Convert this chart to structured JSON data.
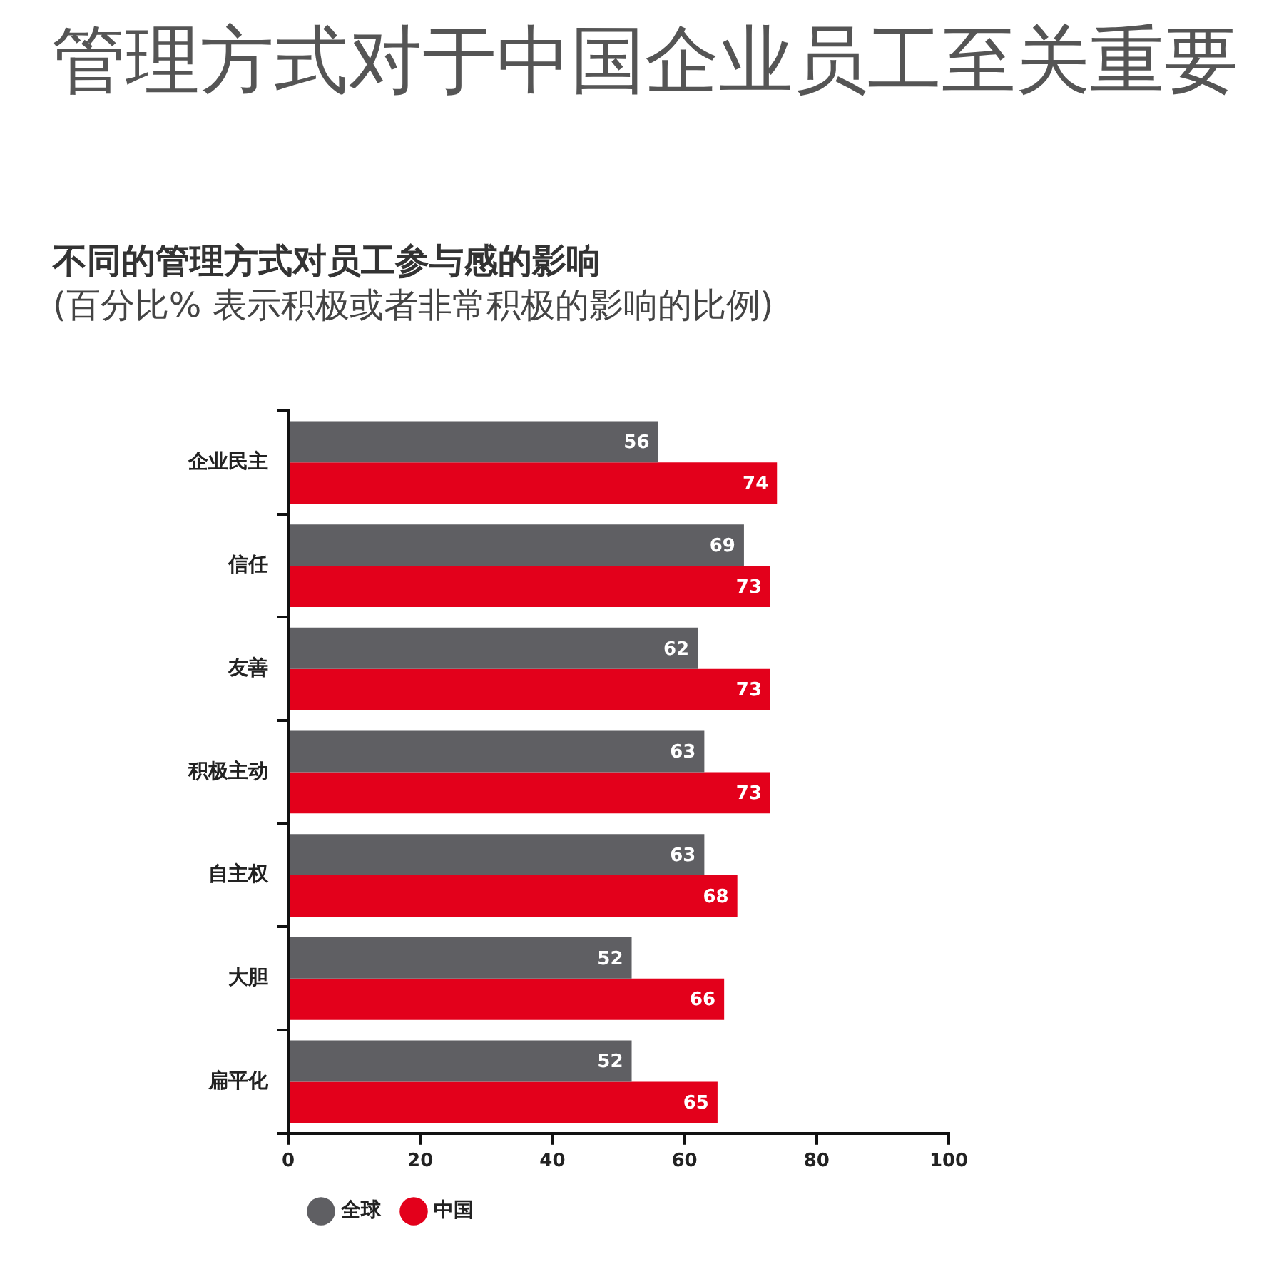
{
  "chart_data": {
    "type": "bar",
    "orientation": "horizontal",
    "title": "管理方式对于中国企业员工至关重要",
    "subtitle": "不同的管理方式对员工参与感的影响\n(百分比% 表示积极或者非常积极的影响的比例)",
    "categories": [
      "企业民主",
      "信任",
      "友善",
      "积极主动",
      "自主权",
      "大胆",
      "扁平化"
    ],
    "series": [
      {
        "name": "全球",
        "color": "#5f5f63",
        "values": [
          56,
          69,
          62,
          63,
          63,
          52,
          52
        ]
      },
      {
        "name": "中国",
        "color": "#e3001b",
        "values": [
          74,
          73,
          73,
          73,
          68,
          66,
          65
        ]
      }
    ],
    "xlim": [
      0,
      100
    ],
    "xticks": [
      0,
      20,
      40,
      60,
      80,
      100
    ],
    "data_labels": true,
    "legend": "bottom left",
    "grid": false
  }
}
